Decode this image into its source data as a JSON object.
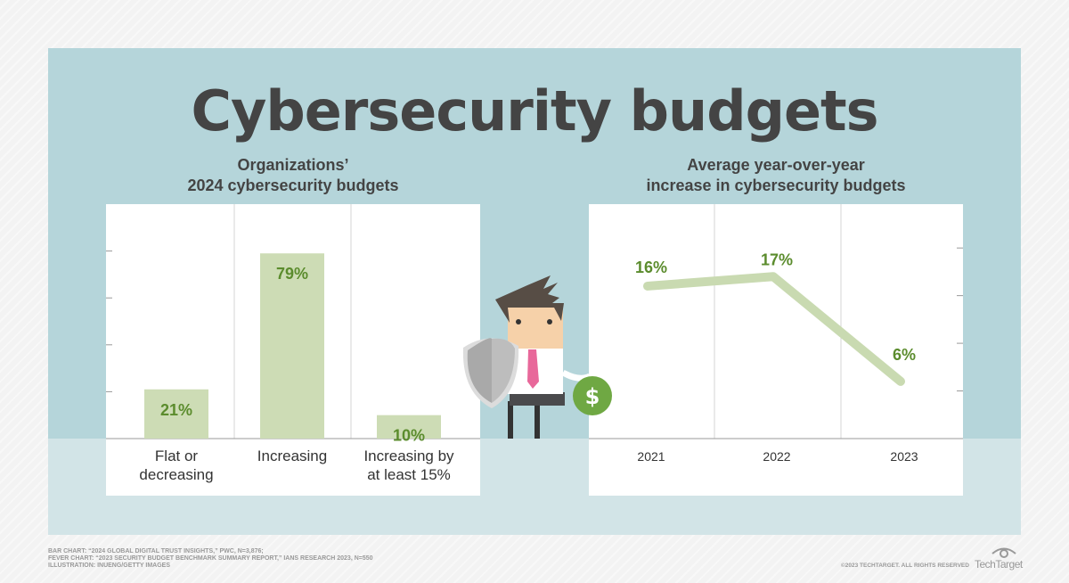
{
  "title": "Cybersecurity budgets",
  "chart_data": [
    {
      "type": "bar",
      "title_lines": [
        "Organizations’",
        "2024 cybersecurity budgets"
      ],
      "categories": [
        [
          "Flat or",
          "decreasing"
        ],
        [
          "Increasing"
        ],
        [
          "Increasing by",
          "at least 15%"
        ]
      ],
      "values": [
        21,
        79,
        10
      ],
      "data_labels": [
        "21%",
        "79%",
        "10%"
      ],
      "ylim": [
        0,
        100
      ],
      "yticks": [
        20,
        40,
        60,
        80
      ],
      "bar_color": "#cddcb5",
      "label_color": "#5b8c2d"
    },
    {
      "type": "line",
      "title_lines": [
        "Average year-over-year",
        "increase in cybersecurity budgets"
      ],
      "categories": [
        "2021",
        "2022",
        "2023"
      ],
      "values": [
        16,
        17,
        6
      ],
      "data_labels": [
        "16%",
        "17%",
        "6%"
      ],
      "ylim": [
        0,
        24.6
      ],
      "yticks": [
        5,
        10,
        15,
        20
      ],
      "line_color": "#c9dab1",
      "label_color": "#5b8c2d"
    }
  ],
  "footer": {
    "lines": [
      "BAR CHART: “2024 GLOBAL DIGITAL TRUST INSIGHTS,” PWC, N=3,876;",
      "FEVER CHART: “2023 SECURITY BUDGET BENCHMARK SUMMARY REPORT,” IANS RESEARCH 2023, N=550",
      "ILLUSTRATION: INUENG/GETTY IMAGES"
    ],
    "copyright": "©2023 TECHTARGET. ALL RIGHTS RESERVED",
    "logo": "TechTarget"
  }
}
